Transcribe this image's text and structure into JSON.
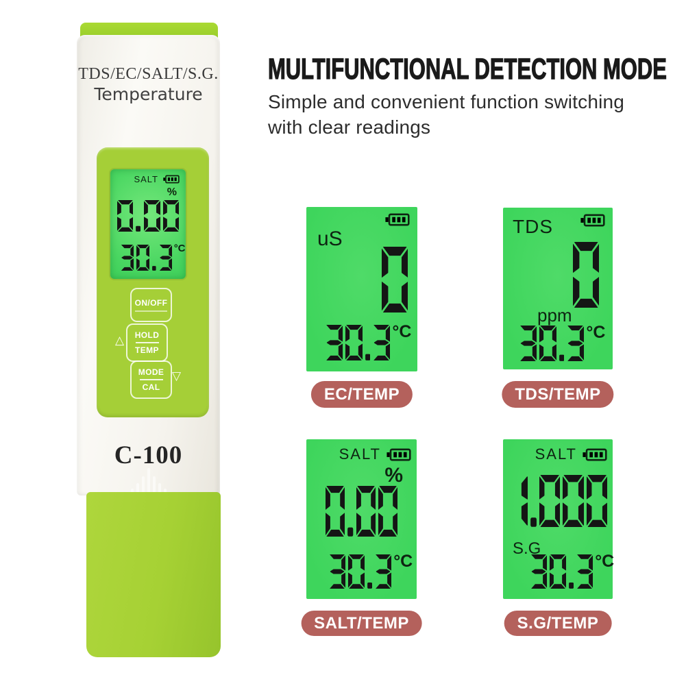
{
  "header": {
    "title": "MULTIFUNCTIONAL DETECTION MODE",
    "subtitle_line1": "Simple and convenient function switching",
    "subtitle_line2": "with clear readings"
  },
  "device": {
    "type_label": "TDS/EC/SALT/S.G.",
    "type_label2": "Temperature",
    "model": "C-100",
    "lcd": {
      "mode": "SALT",
      "unit": "%",
      "value": "0.00",
      "temp": "30.3",
      "temp_unit": "°C",
      "battery_icon": "battery-icon"
    },
    "buttons": {
      "power": "ON/OFF",
      "hold_top": "HOLD",
      "hold_bottom": "TEMP",
      "mode_top": "MODE",
      "mode_bottom": "CAL"
    },
    "arrows": {
      "up": "△",
      "down": "▽"
    }
  },
  "modes": [
    {
      "name": "EC",
      "mode_label": "uS",
      "value": "0",
      "temp": "30.3",
      "temp_unit": "°C",
      "tag": "EC/TEMP"
    },
    {
      "name": "TDS",
      "mode_label": "TDS",
      "unit": "ppm",
      "value": "0",
      "temp": "30.3",
      "temp_unit": "°C",
      "tag": "TDS/TEMP"
    },
    {
      "name": "SALT",
      "mode_label": "SALT",
      "unit": "%",
      "value": "0.00",
      "temp": "30.3",
      "temp_unit": "°C",
      "tag": "SALT/TEMP"
    },
    {
      "name": "S.G",
      "mode_label": "SALT",
      "unit": "S.G",
      "value": "1.000",
      "temp": "30.3",
      "temp_unit": "°C",
      "tag": "S.G/TEMP"
    }
  ],
  "colors": {
    "body_green": "#a5cf37",
    "lcd_green": "#3ed55c",
    "pill_red": "#b4615c",
    "title_black": "#1a1a1a"
  }
}
